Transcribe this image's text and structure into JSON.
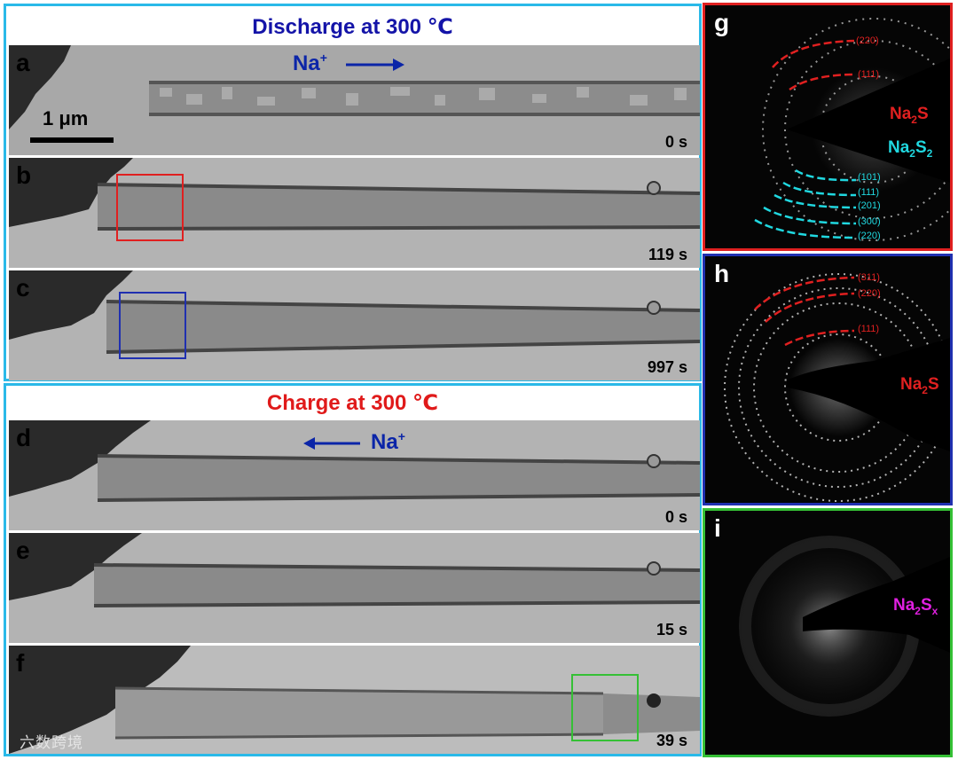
{
  "discharge": {
    "title": "Discharge at 300 ℃",
    "color": "#1414a8"
  },
  "charge": {
    "title": "Charge at 300 ℃",
    "color": "#e01a1a"
  },
  "na_ion": {
    "base": "Na",
    "sup": "+"
  },
  "scale_bar": {
    "label": "1 μm"
  },
  "panels": [
    {
      "label": "a",
      "time": "0 s"
    },
    {
      "label": "b",
      "time": "119 s"
    },
    {
      "label": "c",
      "time": "997 s"
    },
    {
      "label": "d",
      "time": "0 s"
    },
    {
      "label": "e",
      "time": "15 s"
    },
    {
      "label": "f",
      "time": "39 s"
    }
  ],
  "diffraction": {
    "g": {
      "label": "g",
      "frame_color": "#e02020",
      "na2s_rings": [
        "(220)",
        "(111)"
      ],
      "na2s2_rings": [
        "(101)",
        "(111)",
        "(201)",
        "(300)",
        "(220)"
      ]
    },
    "h": {
      "label": "h",
      "frame_color": "#2030b0",
      "na2s_rings": [
        "(311)",
        "(220)",
        "(111)"
      ]
    },
    "i": {
      "label": "i",
      "frame_color": "#35c035"
    }
  },
  "phases": {
    "na2s": {
      "base": "Na",
      "sub": "2",
      "tail": "S",
      "color": "#e02020"
    },
    "na2s2": {
      "base": "Na",
      "sub": "2",
      "mid": "S",
      "sub2": "2",
      "color": "#20d8e0"
    },
    "na2sx": {
      "base": "Na",
      "sub": "2",
      "mid": "S",
      "sub2": "x",
      "color": "#e020e0"
    }
  },
  "watermark": "六数跨境"
}
